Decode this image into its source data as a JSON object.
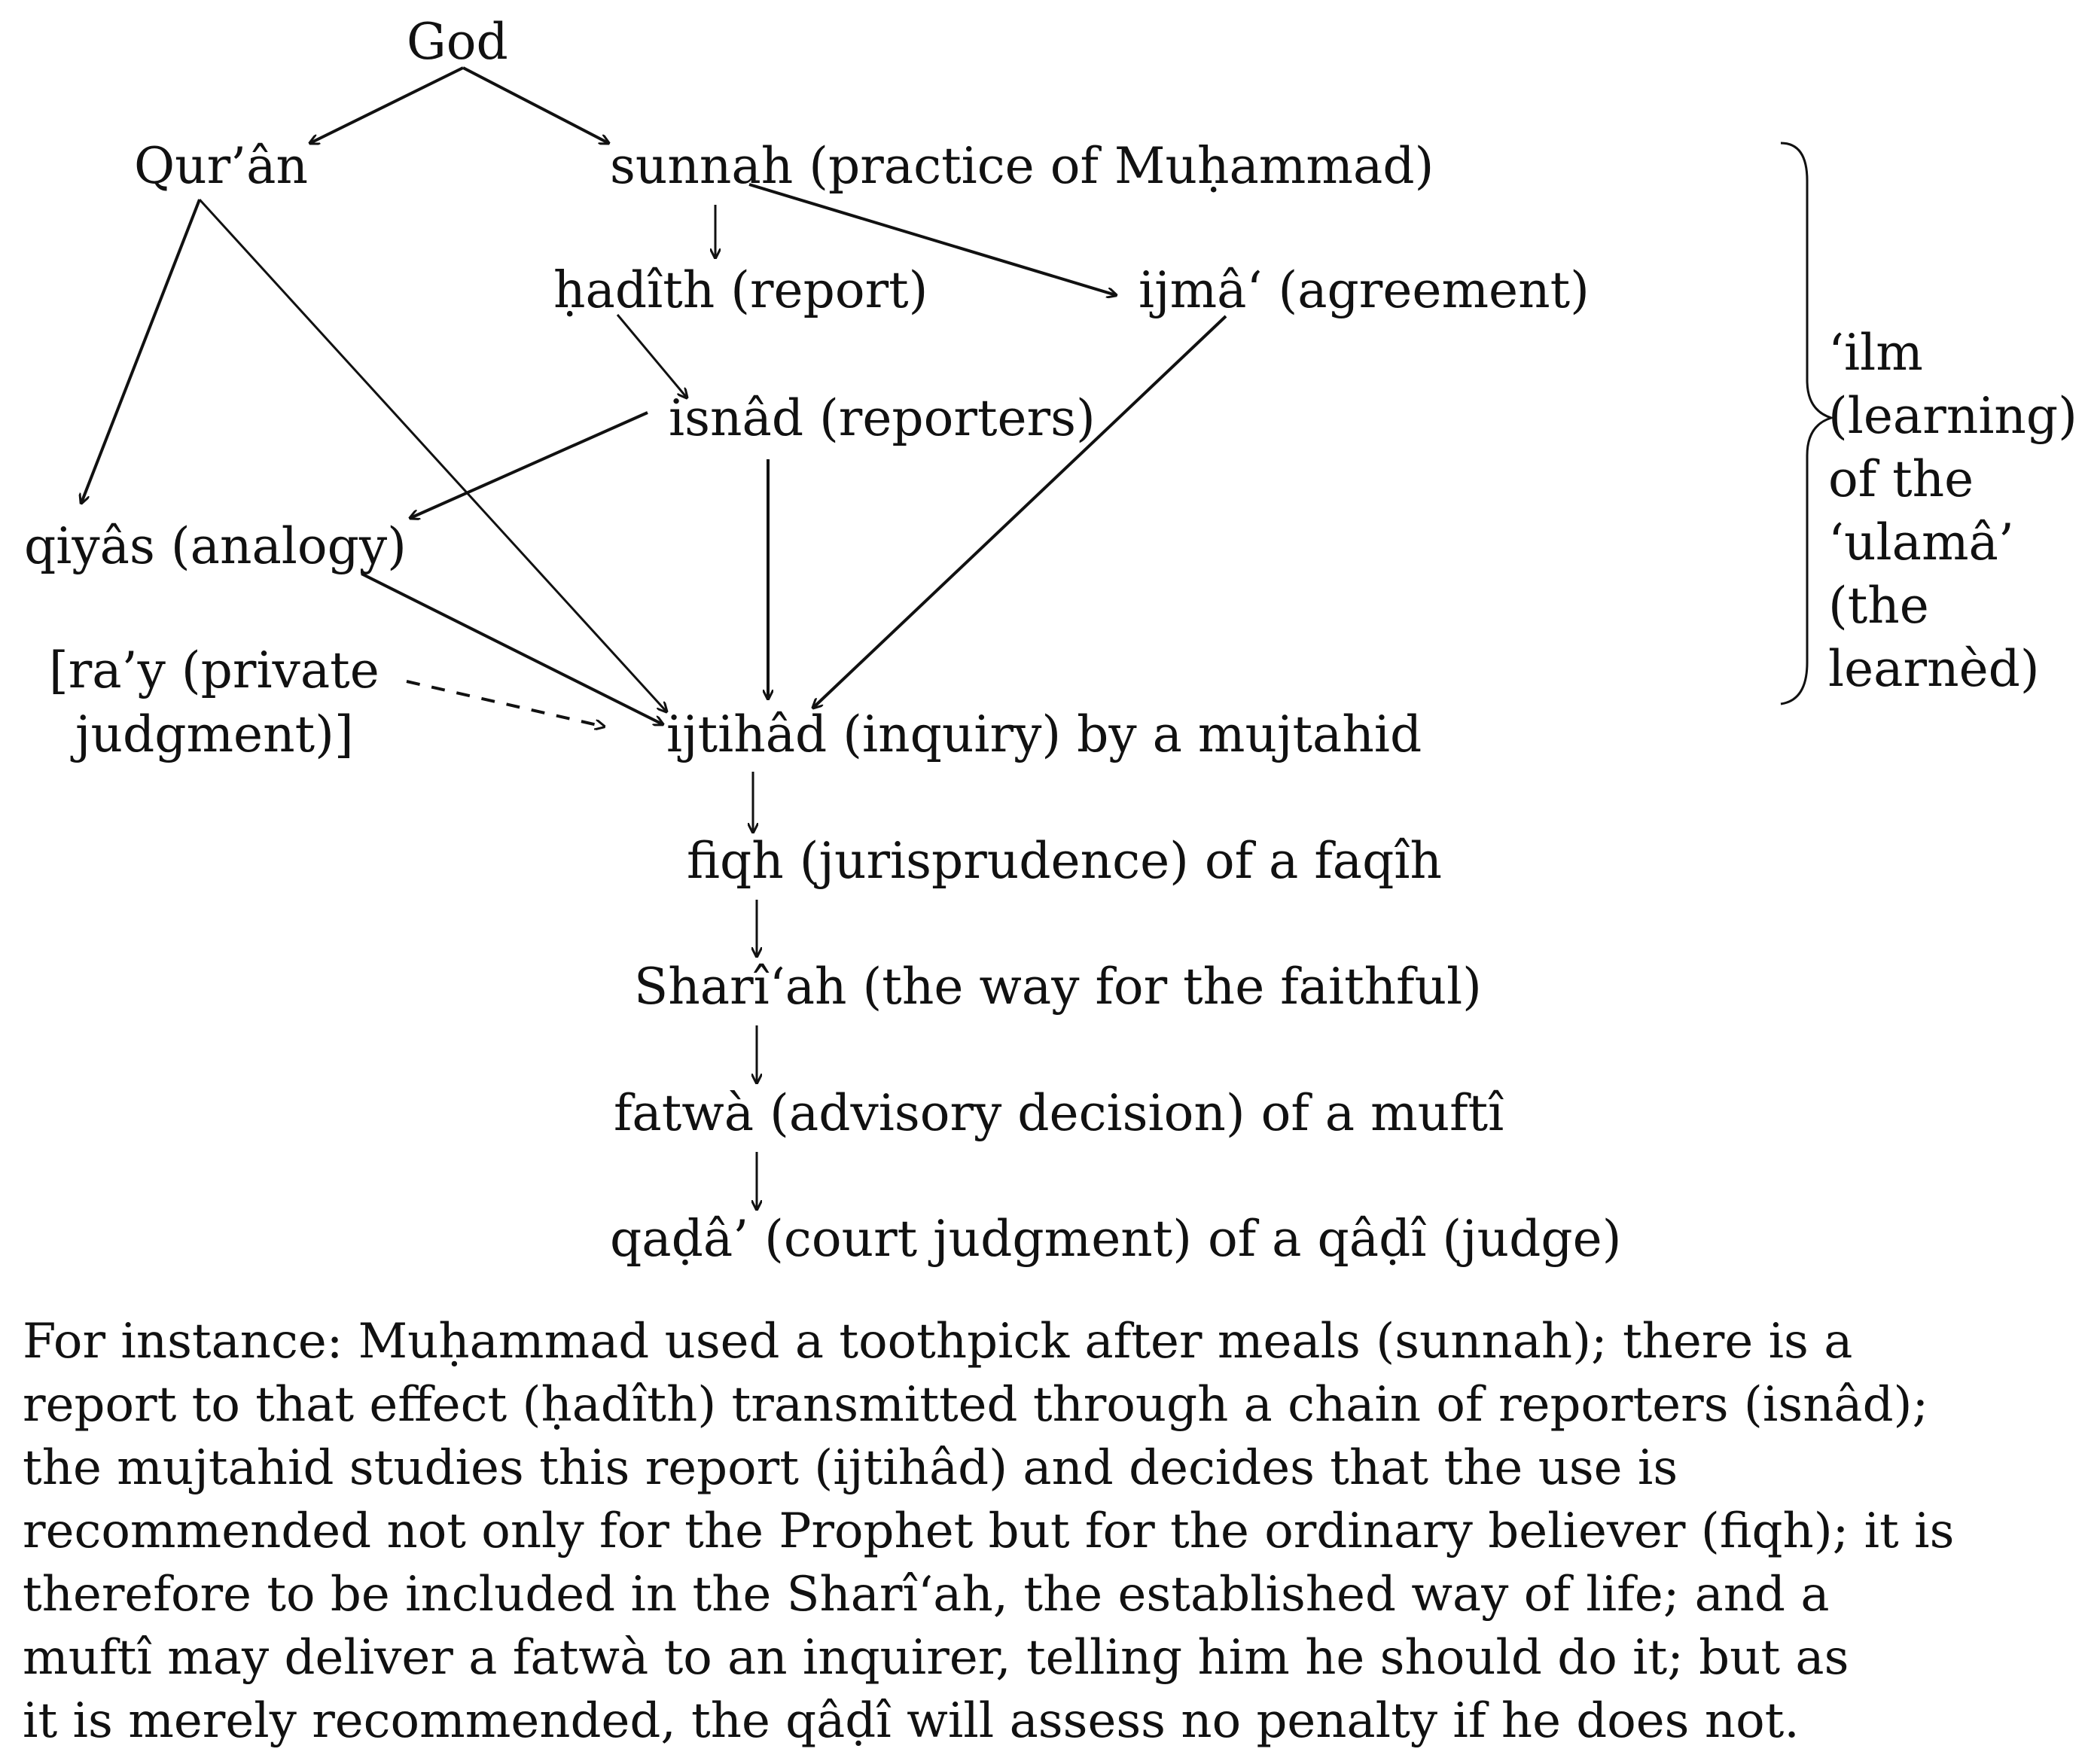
{
  "diagram": {
    "nodes": {
      "god": "God",
      "quran": "Qur’ân",
      "sunnah": "sunnah (practice of Muḥammad)",
      "hadith": "ḥadîth (report)",
      "ijma": "ijmâ‘ (agreement)",
      "isnad": "isnâd (reporters)",
      "qiyas": "qiyâs (analogy)",
      "ray_line1": "[ra’y (private",
      "ray_line2": "judgment)]",
      "ijtihad": "ijtihâd (inquiry) by a mujtahid",
      "fiqh": "fiqh (jurisprudence) of a faqîh",
      "shariah": "Sharî‘ah (the way for the faithful)",
      "fatwa": "fatwà (advisory decision) of a muftî",
      "qada": "qaḍâ’ (court judgment) of a qâḍî (judge)"
    },
    "bracket_label": {
      "line1": "‘ilm",
      "line2": "(learning)",
      "line3": "of the",
      "line4": "‘ulamâ’",
      "line5": "(the",
      "line6": "learnèd)"
    }
  },
  "caption": {
    "lines": [
      "For instance: Muḥammad used a toothpick after meals (sunnah); there is a",
      "report to that effect (ḥadîth) transmitted through a chain of reporters (isnâd);",
      "the mujtahid studies this report (ijtihâd) and decides that the use is",
      "recommended not only for the Prophet but for the ordinary believer (fiqh); it is",
      "therefore to be included in the Sharî‘ah, the established way of life; and a",
      "muftî may deliver a fatwà to an inquirer, telling him he should do it; but as",
      "it is merely recommended, the qâḍî will assess no penalty if he does not."
    ]
  }
}
